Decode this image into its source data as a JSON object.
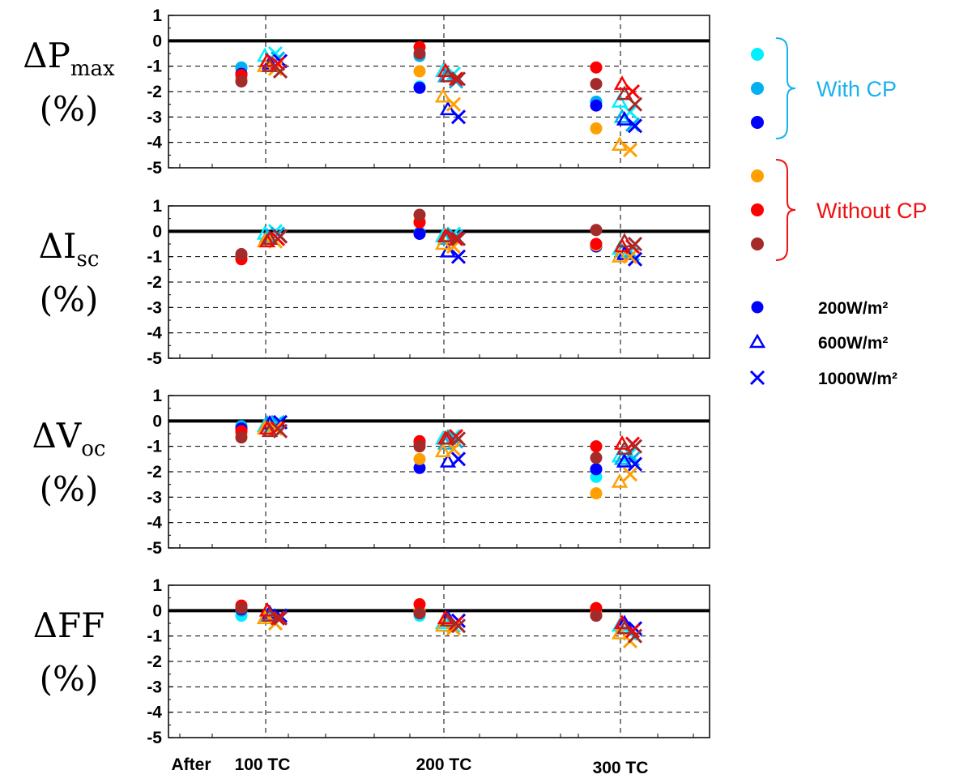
{
  "chart_data": {
    "type": "scatter",
    "x_prefix": "After",
    "categories": [
      "100 TC",
      "200 TC",
      "300 TC"
    ],
    "yticks": [
      1,
      0,
      -1,
      -2,
      -3,
      -4,
      -5
    ],
    "ylim": [
      -5,
      1
    ],
    "grid": "dashed",
    "panels": [
      {
        "ylabel_main": "ΔP",
        "ylabel_sub": "max",
        "ylabel_unit": "(%)",
        "series": [
          {
            "name": "With CP 1",
            "color": "#00f0ff",
            "group": "With CP",
            "circle": [
              -1.1,
              -1.8,
              -2.4
            ],
            "triangle": [
              -0.6,
              -1.2,
              -2.4
            ],
            "cross": [
              -0.5,
              -1.3,
              -2.8
            ]
          },
          {
            "name": "With CP 2",
            "color": "#00b0f0",
            "group": "With CP",
            "circle": [
              -1.05,
              -0.6,
              -2.4
            ],
            "triangle": [
              -0.8,
              -1.4,
              -3.0
            ],
            "cross": [
              -0.7,
              -1.6,
              -3.3
            ]
          },
          {
            "name": "With CP 3",
            "color": "#0000ff",
            "group": "With CP",
            "circle": [
              -1.3,
              -1.85,
              -2.55
            ],
            "triangle": [
              -0.9,
              -2.7,
              -3.1
            ],
            "cross": [
              -0.8,
              -3.0,
              -3.35
            ]
          },
          {
            "name": "Without CP 1",
            "color": "#ffa000",
            "group": "Without CP",
            "circle": [
              -1.5,
              -1.2,
              -3.45
            ],
            "triangle": [
              -1.0,
              -2.2,
              -4.1
            ],
            "cross": [
              -1.1,
              -2.5,
              -4.3
            ]
          },
          {
            "name": "Without CP 2",
            "color": "#ff0000",
            "group": "Without CP",
            "circle": [
              -1.35,
              -0.25,
              -1.05
            ],
            "triangle": [
              -0.8,
              -1.2,
              -1.7
            ],
            "cross": [
              -0.9,
              -1.5,
              -2.0
            ]
          },
          {
            "name": "Without CP 3",
            "color": "#a52a2a",
            "group": "Without CP",
            "circle": [
              -1.6,
              -0.5,
              -1.7
            ],
            "triangle": [
              -1.0,
              -1.4,
              -2.1
            ],
            "cross": [
              -1.2,
              -1.5,
              -2.5
            ]
          }
        ]
      },
      {
        "ylabel_main": "ΔI",
        "ylabel_sub": "sc",
        "ylabel_unit": "(%)",
        "series": [
          {
            "name": "With CP 1",
            "color": "#00f0ff",
            "group": "With CP",
            "circle": [
              -1.0,
              -0.1,
              -0.5
            ],
            "triangle": [
              -0.1,
              -0.2,
              -0.7
            ],
            "cross": [
              0.0,
              -0.1,
              -0.8
            ]
          },
          {
            "name": "With CP 2",
            "color": "#00b0f0",
            "group": "With CP",
            "circle": [
              -1.0,
              -0.05,
              -0.6
            ],
            "triangle": [
              -0.2,
              -0.3,
              -0.8
            ],
            "cross": [
              -0.1,
              -0.2,
              -0.9
            ]
          },
          {
            "name": "With CP 3",
            "color": "#0000ff",
            "group": "With CP",
            "circle": [
              -1.05,
              -0.1,
              -0.6
            ],
            "triangle": [
              -0.3,
              -0.8,
              -0.9
            ],
            "cross": [
              -0.2,
              -1.0,
              -1.1
            ]
          },
          {
            "name": "Without CP 1",
            "color": "#ffa000",
            "group": "Without CP",
            "circle": [
              -1.0,
              0.4,
              -0.55
            ],
            "triangle": [
              -0.4,
              -0.5,
              -1.0
            ],
            "cross": [
              -0.4,
              -0.6,
              -1.0
            ]
          },
          {
            "name": "Without CP 2",
            "color": "#ff0000",
            "group": "Without CP",
            "circle": [
              -1.1,
              0.35,
              -0.5
            ],
            "triangle": [
              -0.4,
              -0.2,
              -0.6
            ],
            "cross": [
              -0.3,
              -0.3,
              -0.6
            ]
          },
          {
            "name": "Without CP 3",
            "color": "#a52a2a",
            "group": "Without CP",
            "circle": [
              -0.9,
              0.65,
              0.05
            ],
            "triangle": [
              -0.3,
              -0.2,
              -0.4
            ],
            "cross": [
              -0.2,
              -0.3,
              -0.5
            ]
          }
        ]
      },
      {
        "ylabel_main": "ΔV",
        "ylabel_sub": "oc",
        "ylabel_unit": "(%)",
        "series": [
          {
            "name": "With CP 1",
            "color": "#00f0ff",
            "group": "With CP",
            "circle": [
              -0.3,
              -0.8,
              -2.2
            ],
            "triangle": [
              -0.2,
              -0.7,
              -1.4
            ],
            "cross": [
              -0.1,
              -0.6,
              -1.3
            ]
          },
          {
            "name": "With CP 2",
            "color": "#00b0f0",
            "group": "With CP",
            "circle": [
              -0.2,
              -0.9,
              -1.9
            ],
            "triangle": [
              -0.1,
              -0.9,
              -1.5
            ],
            "cross": [
              -0.05,
              -0.8,
              -1.5
            ]
          },
          {
            "name": "With CP 3",
            "color": "#0000ff",
            "group": "With CP",
            "circle": [
              -0.3,
              -1.85,
              -1.9
            ],
            "triangle": [
              -0.1,
              -1.6,
              -1.6
            ],
            "cross": [
              -0.05,
              -1.5,
              -1.7
            ]
          },
          {
            "name": "Without CP 1",
            "color": "#ffa000",
            "group": "Without CP",
            "circle": [
              -0.5,
              -1.5,
              -2.85
            ],
            "triangle": [
              -0.3,
              -1.2,
              -2.4
            ],
            "cross": [
              -0.3,
              -1.1,
              -2.1
            ]
          },
          {
            "name": "Without CP 2",
            "color": "#ff0000",
            "group": "Without CP",
            "circle": [
              -0.4,
              -0.8,
              -1.0
            ],
            "triangle": [
              -0.3,
              -0.7,
              -0.9
            ],
            "cross": [
              -0.3,
              -0.6,
              -0.9
            ]
          },
          {
            "name": "Without CP 3",
            "color": "#a52a2a",
            "group": "Without CP",
            "circle": [
              -0.65,
              -1.0,
              -1.45
            ],
            "triangle": [
              -0.4,
              -0.7,
              -1.1
            ],
            "cross": [
              -0.4,
              -0.7,
              -1.0
            ]
          }
        ]
      },
      {
        "ylabel_main": "ΔFF",
        "ylabel_sub": "",
        "ylabel_unit": "(%)",
        "series": [
          {
            "name": "With CP 1",
            "color": "#00f0ff",
            "group": "With CP",
            "circle": [
              -0.2,
              -0.2,
              -0.2
            ],
            "triangle": [
              -0.3,
              -0.5,
              -0.6
            ],
            "cross": [
              -0.5,
              -0.6,
              -0.9
            ]
          },
          {
            "name": "With CP 2",
            "color": "#00b0f0",
            "group": "With CP",
            "circle": [
              0.0,
              -0.1,
              -0.1
            ],
            "triangle": [
              -0.2,
              -0.4,
              -0.5
            ],
            "cross": [
              -0.3,
              -0.5,
              -0.8
            ]
          },
          {
            "name": "With CP 3",
            "color": "#0000ff",
            "group": "With CP",
            "circle": [
              0.05,
              -0.1,
              -0.05
            ],
            "triangle": [
              -0.1,
              -0.3,
              -0.5
            ],
            "cross": [
              -0.2,
              -0.4,
              -0.7
            ]
          },
          {
            "name": "Without CP 1",
            "color": "#ffa000",
            "group": "Without CP",
            "circle": [
              0.1,
              0.0,
              -0.1
            ],
            "triangle": [
              -0.3,
              -0.6,
              -0.9
            ],
            "cross": [
              -0.5,
              -0.7,
              -1.2
            ]
          },
          {
            "name": "Without CP 2",
            "color": "#ff0000",
            "group": "Without CP",
            "circle": [
              0.2,
              0.25,
              0.1
            ],
            "triangle": [
              0.0,
              -0.3,
              -0.5
            ],
            "cross": [
              -0.3,
              -0.5,
              -0.8
            ]
          },
          {
            "name": "Without CP 3",
            "color": "#a52a2a",
            "group": "Without CP",
            "circle": [
              0.1,
              -0.1,
              -0.2
            ],
            "triangle": [
              -0.2,
              -0.4,
              -0.7
            ],
            "cross": [
              -0.3,
              -0.6,
              -1.0
            ]
          }
        ]
      }
    ]
  },
  "legend": {
    "groups": [
      {
        "label": "With CP",
        "color": "#1ab2ee",
        "bracket_color": "#1ab2ee",
        "dots": [
          "#00f0ff",
          "#00b0f0",
          "#0000ff"
        ]
      },
      {
        "label": "Without CP",
        "color": "#ee1111",
        "bracket_color": "#ee1111",
        "dots": [
          "#ffa000",
          "#ff0000",
          "#a52a2a"
        ]
      }
    ],
    "markers": [
      {
        "shape": "circle",
        "label": "200W/m²",
        "color": "#0000ff"
      },
      {
        "shape": "triangle",
        "label": "600W/m²",
        "color": "#0000ff"
      },
      {
        "shape": "cross",
        "label": "1000W/m²",
        "color": "#0000ff"
      }
    ]
  }
}
